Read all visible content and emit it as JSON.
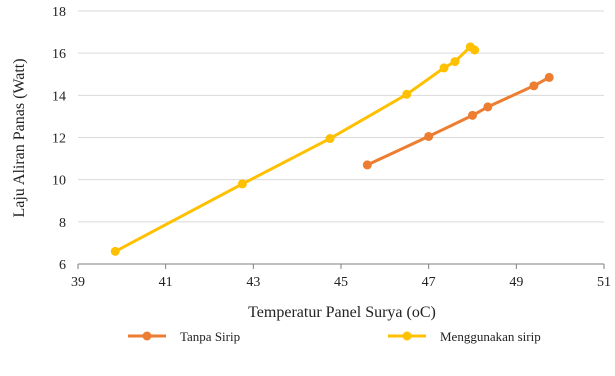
{
  "chart_data": {
    "type": "line",
    "title": "",
    "xlabel": "Temperatur Panel Surya (oC)",
    "ylabel": "Laju Aliran Panas (Watt)",
    "xlim": [
      39,
      51
    ],
    "ylim": [
      6,
      18
    ],
    "x_ticks": [
      39,
      41,
      43,
      45,
      47,
      49,
      51
    ],
    "y_ticks": [
      6,
      8,
      10,
      12,
      14,
      16,
      18
    ],
    "grid": "horizontal",
    "legend_position": "bottom",
    "series": [
      {
        "name": "Tanpa Sirip",
        "color": "#ED7D31",
        "x": [
          45.6,
          47.0,
          48.0,
          48.35,
          49.4,
          49.75
        ],
        "y": [
          10.7,
          12.05,
          13.05,
          13.45,
          14.45,
          14.85
        ]
      },
      {
        "name": "Menggunakan sirip",
        "color": "#FFC000",
        "x": [
          39.85,
          42.75,
          44.75,
          46.5,
          47.35,
          47.6,
          47.95,
          48.05
        ],
        "y": [
          6.6,
          9.8,
          11.95,
          14.05,
          15.3,
          15.6,
          16.3,
          16.15
        ]
      }
    ]
  }
}
